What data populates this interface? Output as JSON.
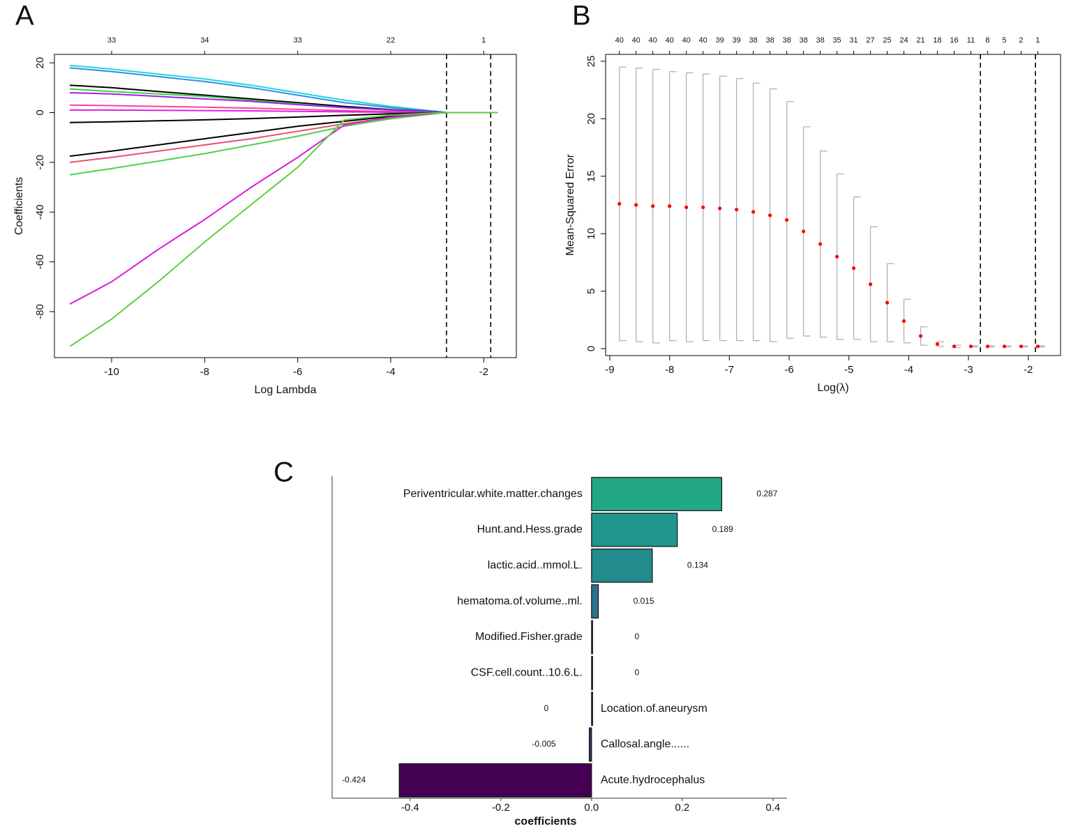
{
  "chart_data": [
    {
      "type": "line",
      "panel_label": "A",
      "x_label": "Log Lambda",
      "y_label": "Coefficients",
      "x": [
        -10.9,
        -10,
        -9,
        -8,
        -7,
        -6,
        -5,
        -4,
        -3,
        -2.8,
        -2,
        -1.7
      ],
      "series": [
        {
          "color": "#22d3e6",
          "values": [
            19,
            17.5,
            15.5,
            13.5,
            11,
            8,
            5,
            2.5,
            0.5,
            0,
            0,
            0
          ]
        },
        {
          "color": "#2f8fe0",
          "values": [
            18,
            16.5,
            14.5,
            12.5,
            10,
            7,
            4,
            2,
            0.3,
            0,
            0,
            0
          ]
        },
        {
          "color": "#000000",
          "values": [
            11,
            10,
            8.5,
            7,
            5.5,
            4,
            2.5,
            1.2,
            0.2,
            0,
            0,
            0
          ]
        },
        {
          "color": "#3fcf3f",
          "values": [
            9.5,
            8.5,
            7.5,
            6.5,
            5,
            3.5,
            2,
            1,
            0.1,
            0,
            0,
            0
          ]
        },
        {
          "color": "#a020f0",
          "values": [
            8,
            7.5,
            6.5,
            5.5,
            4.5,
            3.2,
            2,
            1,
            0.1,
            0,
            0,
            0
          ]
        },
        {
          "color": "#ff40a0",
          "values": [
            3,
            2.8,
            2.5,
            2.2,
            1.8,
            1.3,
            0.8,
            0.4,
            0.05,
            0,
            0,
            0
          ]
        },
        {
          "color": "#e020e0",
          "values": [
            1,
            1,
            0.9,
            0.8,
            0.7,
            0.5,
            0.3,
            0.1,
            0,
            0,
            0,
            0
          ]
        },
        {
          "color": "#000000",
          "values": [
            -4,
            -3.7,
            -3.3,
            -2.9,
            -2.4,
            -1.8,
            -1.1,
            -0.5,
            -0.05,
            0,
            0,
            0
          ]
        },
        {
          "color": "#000000",
          "values": [
            -17.5,
            -15.5,
            -13,
            -10.5,
            -8,
            -5.5,
            -3.5,
            -1.5,
            -0.2,
            0,
            0,
            0
          ]
        },
        {
          "color": "#e8506e",
          "values": [
            -20,
            -18,
            -15.5,
            -13,
            -10.5,
            -7.5,
            -4.5,
            -2,
            -0.2,
            0,
            0,
            0
          ]
        },
        {
          "color": "#4fd04f",
          "values": [
            -25,
            -22.5,
            -19.5,
            -16.5,
            -13,
            -9.5,
            -5.5,
            -2.5,
            -0.3,
            0,
            0,
            0
          ]
        },
        {
          "color": "#d81ad8",
          "values": [
            -77,
            -68,
            -55,
            -43,
            -30,
            -18,
            -5,
            -1.8,
            -0.2,
            0,
            0,
            0
          ]
        },
        {
          "color": "#5ad03c",
          "values": [
            -94,
            -83,
            -68,
            -52,
            -37,
            -22,
            -3,
            -1,
            -0.1,
            0,
            0,
            0
          ]
        }
      ],
      "xlim": [
        -11.23,
        -1.3
      ],
      "ylim": [
        -98.5,
        23.4
      ],
      "xticks": [
        -10,
        -8,
        -6,
        -4,
        -2
      ],
      "yticks": [
        20,
        0,
        -20,
        -40,
        -60,
        -80
      ],
      "top_ticks": [
        {
          "value": -10,
          "label": "33"
        },
        {
          "value": -8,
          "label": "34"
        },
        {
          "value": -6,
          "label": "33"
        },
        {
          "value": -4,
          "label": "22"
        },
        {
          "value": -2,
          "label": "1"
        }
      ],
      "vlines": [
        -2.8,
        -1.85
      ]
    },
    {
      "type": "errorbar",
      "panel_label": "B",
      "x_label": "Log(λ)",
      "y_label": "Mean-Squared Error",
      "color": "#ff0000",
      "error_color": "#b0b0b0",
      "x": [
        -8.84,
        -8.56,
        -8.28,
        -8.0,
        -7.72,
        -7.44,
        -7.16,
        -6.88,
        -6.6,
        -6.32,
        -6.04,
        -5.76,
        -5.48,
        -5.2,
        -4.92,
        -4.64,
        -4.36,
        -4.08,
        -3.8,
        -3.52,
        -3.24,
        -2.96,
        -2.68,
        -2.4,
        -2.12,
        -1.84
      ],
      "values": [
        12.6,
        12.5,
        12.4,
        12.4,
        12.3,
        12.3,
        12.2,
        12.1,
        11.9,
        11.6,
        11.2,
        10.2,
        9.1,
        8.0,
        7.0,
        5.6,
        4.0,
        2.4,
        1.1,
        0.4,
        0.2,
        0.2,
        0.2,
        0.2,
        0.2,
        0.2
      ],
      "errors": [
        11.9,
        11.9,
        11.9,
        11.7,
        11.7,
        11.6,
        11.5,
        11.4,
        11.2,
        11.0,
        10.3,
        9.1,
        8.1,
        7.2,
        6.2,
        5.0,
        3.4,
        1.9,
        0.8,
        0.2,
        0.1,
        0.05,
        0.05,
        0.05,
        0.05,
        0.05
      ],
      "xlim": [
        -9.07,
        -1.46
      ],
      "ylim": [
        -0.6,
        25.6
      ],
      "xticks": [
        -9,
        -8,
        -7,
        -6,
        -5,
        -4,
        -3,
        -2
      ],
      "yticks": [
        0,
        5,
        10,
        15,
        20,
        25
      ],
      "top_ticks": [
        {
          "value": -8.84,
          "label": "40"
        },
        {
          "value": -8.56,
          "label": "40"
        },
        {
          "value": -8.28,
          "label": "40"
        },
        {
          "value": -8.0,
          "label": "40"
        },
        {
          "value": -7.72,
          "label": "40"
        },
        {
          "value": -7.44,
          "label": "40"
        },
        {
          "value": -7.16,
          "label": "39"
        },
        {
          "value": -6.88,
          "label": "39"
        },
        {
          "value": -6.6,
          "label": "38"
        },
        {
          "value": -6.32,
          "label": "38"
        },
        {
          "value": -6.04,
          "label": "38"
        },
        {
          "value": -5.76,
          "label": "38"
        },
        {
          "value": -5.48,
          "label": "38"
        },
        {
          "value": -5.2,
          "label": "35"
        },
        {
          "value": -4.92,
          "label": "31"
        },
        {
          "value": -4.64,
          "label": "27"
        },
        {
          "value": -4.36,
          "label": "25"
        },
        {
          "value": -4.08,
          "label": "24"
        },
        {
          "value": -3.8,
          "label": "21"
        },
        {
          "value": -3.52,
          "label": "18"
        },
        {
          "value": -3.24,
          "label": "16"
        },
        {
          "value": -2.96,
          "label": "11"
        },
        {
          "value": -2.68,
          "label": "8"
        },
        {
          "value": -2.4,
          "label": "5"
        },
        {
          "value": -2.12,
          "label": "2"
        },
        {
          "value": -1.84,
          "label": "1"
        }
      ],
      "vlines": [
        -2.8,
        -1.88
      ]
    },
    {
      "type": "bar",
      "panel_label": "C",
      "x_label": "coefficients",
      "categories": [
        "Periventricular.white.matter.changes",
        "Hunt.and.Hess.grade",
        "lactic.acid..mmol.L.",
        "hematoma.of.volume..ml.",
        "Modified.Fisher.grade",
        "CSF.cell.count..10.6.L.",
        "Location.of.aneurysm",
        "Callosal.angle......",
        "Acute.hydrocephalus"
      ],
      "values": [
        0.287,
        0.189,
        0.134,
        0.015,
        0,
        0,
        0,
        -0.005,
        -0.424
      ],
      "colors": [
        "#22a884",
        "#1f968b",
        "#238a8d",
        "#2c728e",
        "#33638d",
        "#39568c",
        "#3f4a8a",
        "#2d3e6b",
        "#440154"
      ],
      "xlim": [
        -0.572,
        0.431
      ],
      "xticks": [
        -0.4,
        -0.2,
        {
          "value": 0,
          "label": "0.0"
        },
        0.2,
        0.4
      ]
    }
  ]
}
